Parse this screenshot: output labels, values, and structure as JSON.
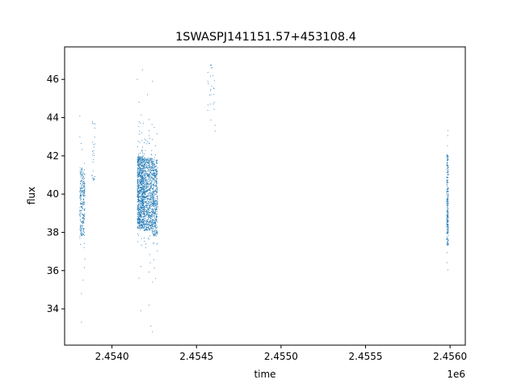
{
  "chart_data": {
    "type": "scatter",
    "title": "1SWASPJ141151.57+453108.4",
    "xlabel": "time",
    "ylabel": "flux",
    "x_offset_label": "1e6",
    "xlim": [
      2.45372,
      2.45609
    ],
    "ylim": [
      32.1,
      47.7
    ],
    "x_ticks": [
      2.454,
      2.4545,
      2.455,
      2.4555,
      2.456
    ],
    "x_tick_labels": [
      "2.4540",
      "2.4545",
      "2.4550",
      "2.4555",
      "2.4560"
    ],
    "y_ticks": [
      34,
      36,
      38,
      40,
      42,
      44,
      46
    ],
    "y_tick_labels": [
      "34",
      "36",
      "38",
      "40",
      "42",
      "44",
      "46"
    ],
    "grid": false,
    "marker_color": "#1f77b4",
    "clusters": [
      {
        "x_range": [
          2.45381,
          2.45384
        ],
        "y_center": 39.6,
        "y_spread": 1.8,
        "count": 260
      },
      {
        "x_range": [
          2.45388,
          2.4539
        ],
        "y_center": 42.2,
        "y_spread": 1.6,
        "count": 28
      },
      {
        "x_range": [
          2.45415,
          2.45419
        ],
        "y_center": 40.1,
        "y_spread": 1.9,
        "count": 900
      },
      {
        "x_range": [
          2.45419,
          2.45424
        ],
        "y_center": 40.0,
        "y_spread": 1.9,
        "count": 700
      },
      {
        "x_range": [
          2.45424,
          2.45427
        ],
        "y_center": 39.8,
        "y_spread": 2.0,
        "count": 420
      },
      {
        "x_range": [
          2.45456,
          2.45461
        ],
        "y_center": 45.2,
        "y_spread": 1.6,
        "count": 26
      },
      {
        "x_range": [
          2.45598,
          2.45599
        ],
        "y_center": 39.7,
        "y_spread": 2.4,
        "count": 260
      }
    ],
    "outliers": [
      [
        2.45381,
        44.1
      ],
      [
        2.45381,
        43.0
      ],
      [
        2.45382,
        34.8
      ],
      [
        2.45382,
        33.3
      ],
      [
        2.45383,
        35.5
      ],
      [
        2.45384,
        36.6
      ],
      [
        2.45415,
        46.0
      ],
      [
        2.45416,
        44.8
      ],
      [
        2.45416,
        35.6
      ],
      [
        2.45417,
        33.9
      ],
      [
        2.45418,
        46.5
      ],
      [
        2.45421,
        45.2
      ],
      [
        2.45422,
        43.9
      ],
      [
        2.45422,
        34.2
      ],
      [
        2.45423,
        33.1
      ],
      [
        2.45424,
        32.8
      ],
      [
        2.45424,
        45.9
      ],
      [
        2.45424,
        35.4
      ],
      [
        2.45425,
        43.5
      ],
      [
        2.45461,
        43.3
      ],
      [
        2.45461,
        43.6
      ]
    ]
  }
}
